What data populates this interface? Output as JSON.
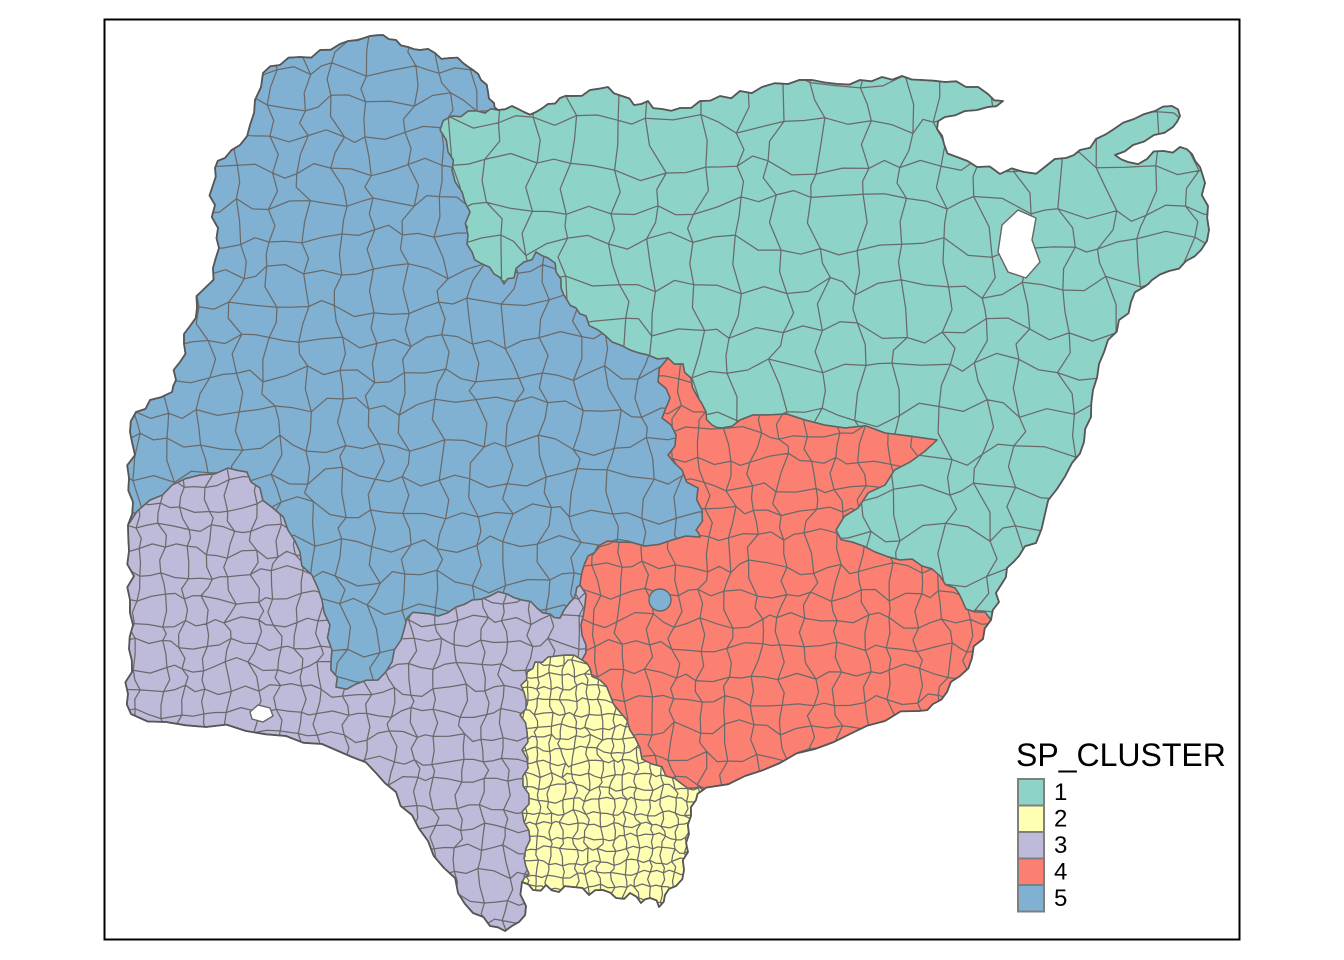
{
  "figure": {
    "type": "choropleth map of local government areas colored by spatial cluster",
    "background_color": "#FFFFFF",
    "frame_color": "#000000",
    "boundary_line_color": "#666666"
  },
  "legend": {
    "title": "SP_CLUSTER",
    "position": "bottom-right",
    "items": [
      {
        "label": "1",
        "color": "#8DD3C7"
      },
      {
        "label": "2",
        "color": "#FFFFB3"
      },
      {
        "label": "3",
        "color": "#BEBADA"
      },
      {
        "label": "4",
        "color": "#FB8072"
      },
      {
        "label": "5",
        "color": "#80B1D3"
      }
    ]
  },
  "chart_data": {
    "type": "choropleth-map",
    "legend_title": "SP_CLUSTER",
    "classes": [
      "1",
      "2",
      "3",
      "4",
      "5"
    ],
    "colors": [
      "#8DD3C7",
      "#FFFFB3",
      "#BEBADA",
      "#FB8072",
      "#80B1D3"
    ],
    "cluster_locations": {
      "1": "north-east",
      "2": "south coastal pocket with many small units",
      "3": "south-west",
      "4": "east-central to south-east",
      "5": "north-west and centre"
    },
    "water_features": [
      "white lake gaps in the north-east",
      "small white lagoon gap in the south-west",
      "small round cluster-5 colored unit inside cluster 4"
    ],
    "legend_position": "bottom-right",
    "grid": "off"
  }
}
